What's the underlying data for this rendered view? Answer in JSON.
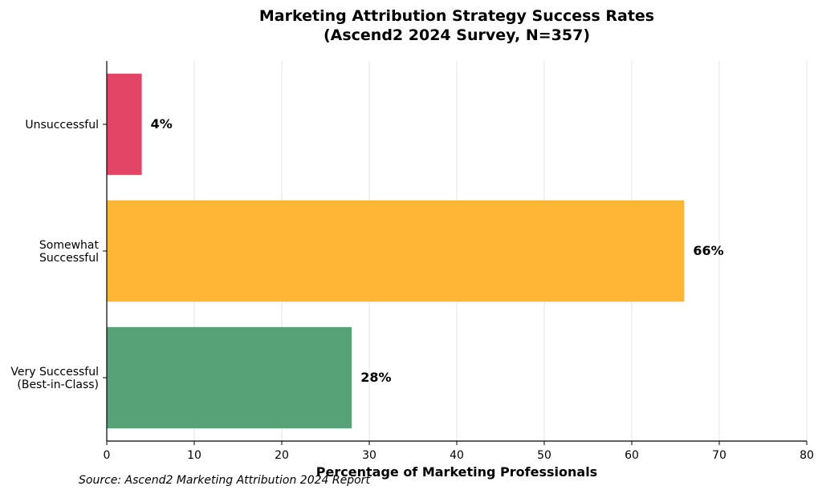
{
  "chart_data": {
    "type": "bar",
    "orientation": "horizontal",
    "title_lines": [
      "Marketing Attribution Strategy Success Rates",
      "(Ascend2 2024 Survey, N=357)"
    ],
    "xlabel": "Percentage of Marketing Professionals",
    "xlim": [
      0,
      80
    ],
    "xticks": [
      0,
      10,
      20,
      30,
      40,
      50,
      60,
      70,
      80
    ],
    "grid": "vertical",
    "categories": [
      {
        "label_lines": [
          "Unsuccessful"
        ],
        "value": 4,
        "value_label": "4%",
        "color": "#e34566"
      },
      {
        "label_lines": [
          "Somewhat",
          "Successful"
        ],
        "value": 66,
        "value_label": "66%",
        "color": "#ffb536"
      },
      {
        "label_lines": [
          "Very Successful",
          "(Best-in-Class)"
        ],
        "value": 28,
        "value_label": "28%",
        "color": "#57a377"
      }
    ],
    "source": "Source: Ascend2 Marketing Attribution 2024 Report"
  }
}
